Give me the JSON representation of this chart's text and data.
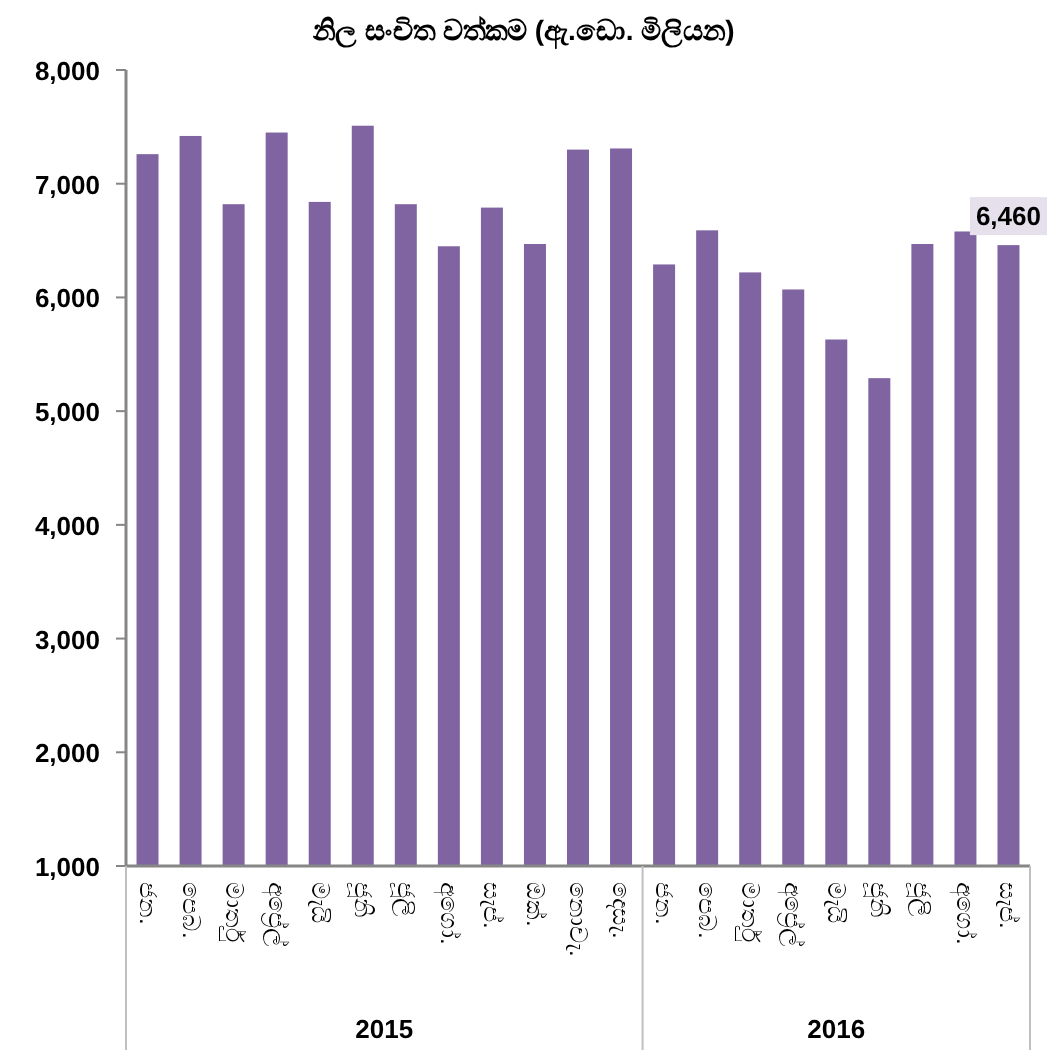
{
  "chart_data": {
    "type": "bar",
    "title": "නිල සංචිත වත්කම (ඇ.ඩො. මිලියන)",
    "categories": [
      "ජන.",
      "පෙබ.",
      "මාර්තු",
      "අප්‍රේල්",
      "මැයි",
      "ජූනි",
      "ජූලි",
      "අගෝ.",
      "සැප්.",
      "ඔක්.",
      "නොවැ.",
      "දෙසැ.",
      "ජන.",
      "පෙබ.",
      "මාර්තු",
      "අප්‍රේල්",
      "මැයි",
      "ජූනි",
      "ජූලි",
      "අගෝ.",
      "සැප්."
    ],
    "values": [
      7260,
      7420,
      6820,
      7450,
      6840,
      7510,
      6820,
      6450,
      6790,
      6470,
      7300,
      7310,
      6290,
      6590,
      6220,
      6070,
      5630,
      5290,
      6470,
      6580,
      6460
    ],
    "value_labels": [
      null,
      null,
      null,
      null,
      null,
      null,
      null,
      null,
      null,
      null,
      null,
      null,
      null,
      null,
      null,
      null,
      null,
      null,
      null,
      null,
      "6,460"
    ],
    "color": "#8064a2",
    "annotations": [
      "2015",
      "2016"
    ],
    "ylim": [
      1000,
      8000
    ],
    "yticks": [
      {
        "value": 1000,
        "label": "1,000"
      },
      {
        "value": 2000,
        "label": "2,000"
      },
      {
        "value": 3000,
        "label": "3,000"
      },
      {
        "value": 4000,
        "label": "4,000"
      },
      {
        "value": 5000,
        "label": "5,000"
      },
      {
        "value": 6000,
        "label": "6,000"
      },
      {
        "value": 7000,
        "label": "7,000"
      },
      {
        "value": 8000,
        "label": "8,000"
      }
    ],
    "grid": false
  }
}
